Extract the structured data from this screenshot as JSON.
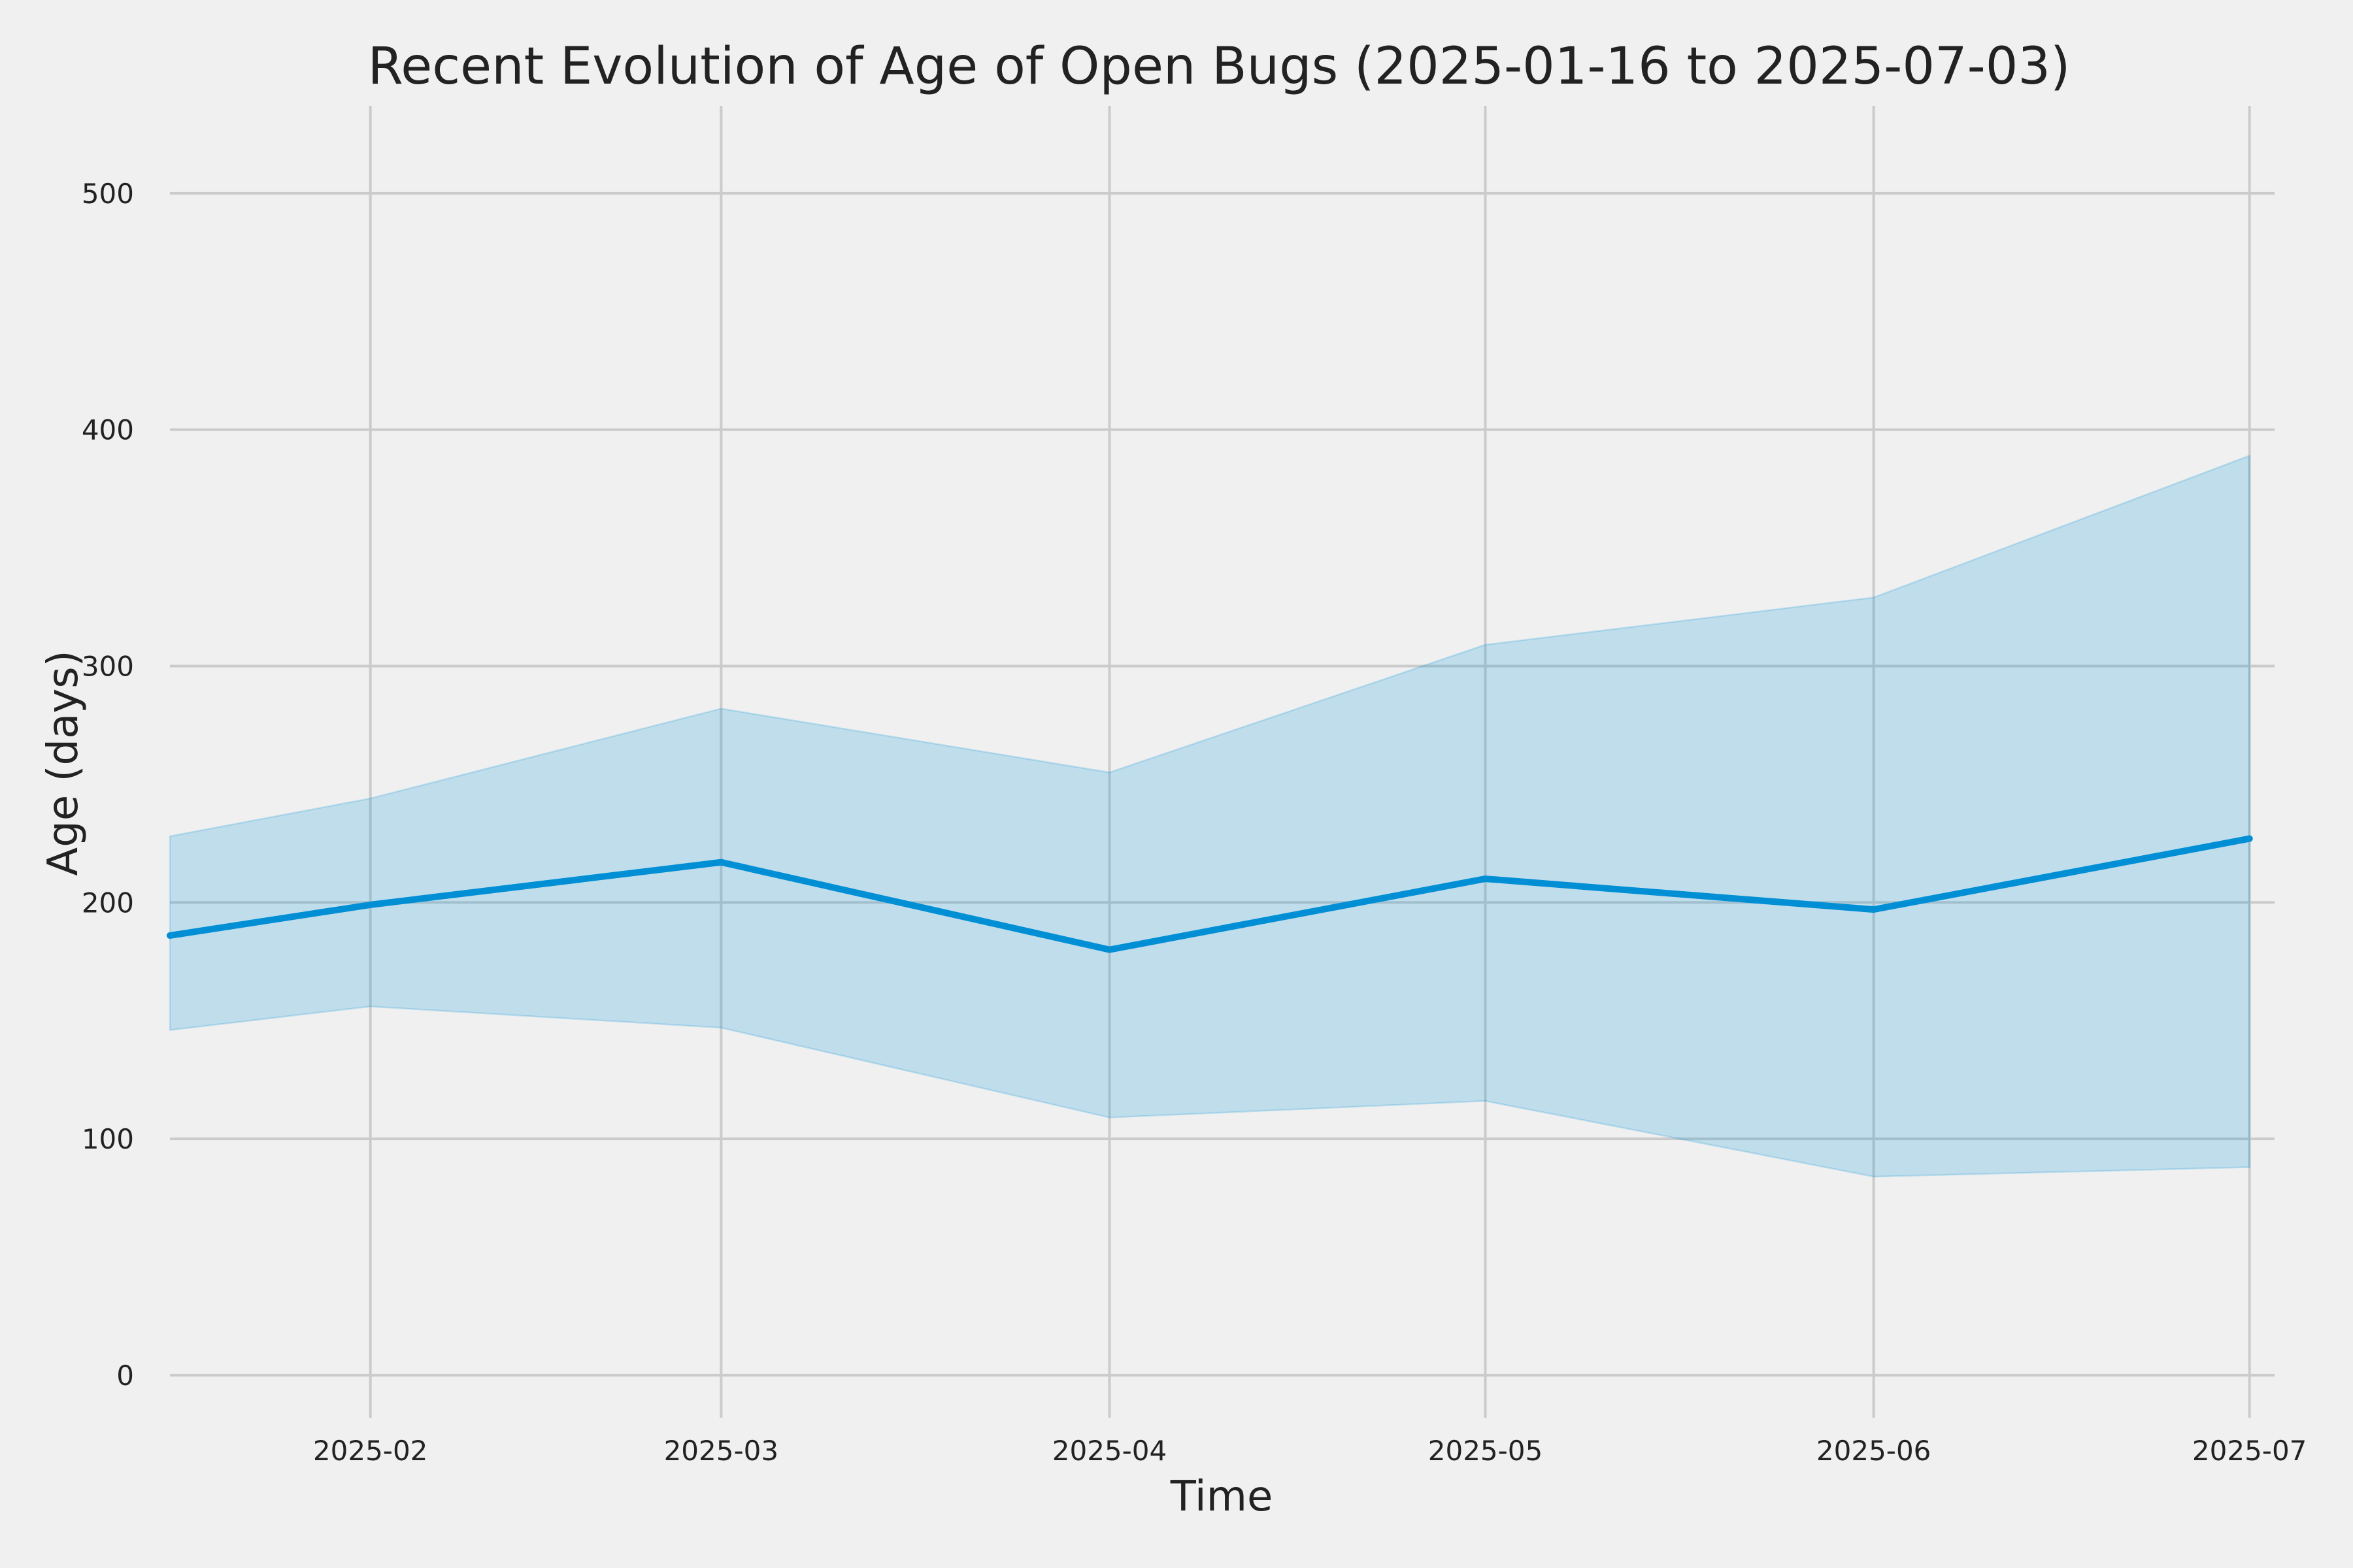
{
  "chart_data": {
    "type": "line",
    "title": "Recent Evolution of Age of Open Bugs (2025-01-16 to 2025-07-03)",
    "xlabel": "Time",
    "ylabel": "Age (days)",
    "x_range": [
      "2025-01-16",
      "2025-07-03"
    ],
    "ylim": [
      -18,
      537
    ],
    "x_ticks": [
      {
        "date": "2025-02-01",
        "label": "2025-02"
      },
      {
        "date": "2025-03-01",
        "label": "2025-03"
      },
      {
        "date": "2025-04-01",
        "label": "2025-04"
      },
      {
        "date": "2025-05-01",
        "label": "2025-05"
      },
      {
        "date": "2025-06-01",
        "label": "2025-06"
      },
      {
        "date": "2025-07-01",
        "label": "2025-07"
      }
    ],
    "y_ticks": [
      0,
      100,
      200,
      300,
      400,
      500
    ],
    "grid": true,
    "x": [
      "2025-01-16",
      "2025-02-01",
      "2025-03-01",
      "2025-04-01",
      "2025-05-01",
      "2025-06-01",
      "2025-07-01"
    ],
    "series": [
      {
        "values": [
          186,
          199,
          217,
          180,
          210,
          197,
          227
        ],
        "upper": [
          228,
          244,
          282,
          255,
          309,
          329,
          389
        ],
        "lower": [
          146,
          156,
          147,
          109,
          116,
          84,
          88
        ],
        "color": "#008fd5",
        "band_color": "#008fd5"
      }
    ]
  }
}
